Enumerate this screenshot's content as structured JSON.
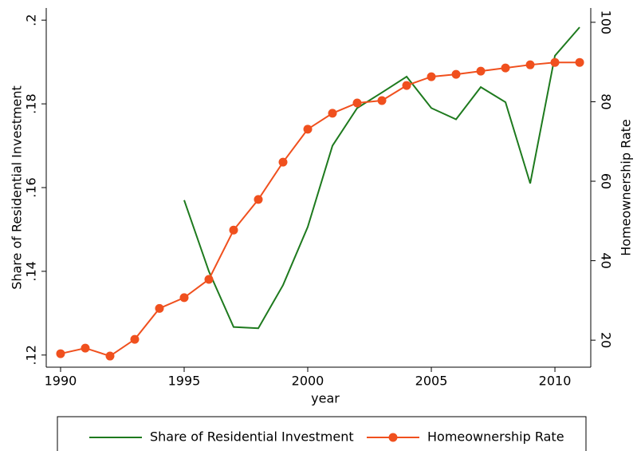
{
  "chart_data": {
    "type": "line",
    "x": [
      1990,
      1991,
      1992,
      1993,
      1994,
      1995,
      1996,
      1997,
      1998,
      1999,
      2000,
      2001,
      2002,
      2003,
      2004,
      2005,
      2006,
      2007,
      2008,
      2009,
      2010,
      2011
    ],
    "x_label": "year",
    "y_label": "Share of Residential Investment",
    "y2_label": "Homeownership Rate",
    "series": [
      {
        "name": "Share of Residential Investment",
        "color": "#1e7a1e",
        "values": [
          null,
          null,
          null,
          null,
          null,
          0.157,
          0.14,
          0.1267,
          0.1264,
          0.1367,
          0.1506,
          0.17,
          0.179,
          0.1827,
          0.1865,
          0.179,
          0.1763,
          0.184,
          0.1804,
          0.161,
          0.1915,
          0.1983
        ]
      },
      {
        "name": "Homeownership Rate",
        "color": "#f0501e",
        "axis": "y2",
        "marker": "circle",
        "values": [
          16.6,
          18.0,
          16.0,
          20.2,
          28.0,
          30.7,
          35.3,
          47.7,
          55.4,
          64.8,
          73.1,
          77.1,
          79.7,
          80.3,
          84.1,
          86.3,
          86.9,
          87.7,
          88.5,
          89.3,
          89.9,
          89.9
        ]
      }
    ],
    "xlim": [
      1989.42,
      2011.45
    ],
    "xticks": [
      1990,
      1995,
      2000,
      2005,
      2010
    ],
    "ylim": [
      0.1171,
      0.2029
    ],
    "yticks": [
      {
        "value": 0.12,
        "label": ".12"
      },
      {
        "value": 0.14,
        "label": ".14"
      },
      {
        "value": 0.16,
        "label": ".16"
      },
      {
        "value": 0.18,
        "label": ".18"
      },
      {
        "value": 0.2,
        "label": ".2"
      }
    ],
    "y2lim": [
      13.2,
      103.6
    ],
    "y2ticks": [
      20,
      40,
      60,
      80,
      100
    ],
    "legend": "bottom"
  }
}
